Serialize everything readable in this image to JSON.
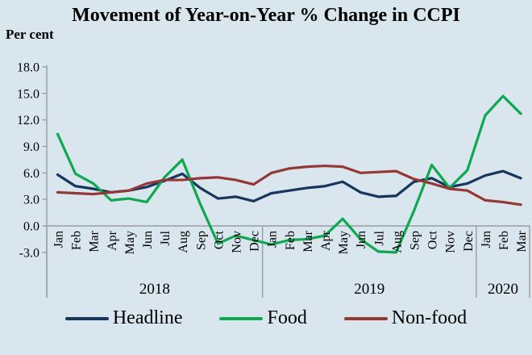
{
  "chart_data": {
    "type": "line",
    "title": "Movement of Year-on-Year % Change in CCPI",
    "ylabel": "Per cent",
    "ylim": [
      -3.0,
      18.0
    ],
    "ytick_step": 3.0,
    "yticks": [
      18.0,
      15.0,
      12.0,
      9.0,
      6.0,
      3.0,
      0.0,
      -3.0
    ],
    "ytick_labels": [
      "18.0",
      "15.0",
      "12.0",
      "9.0",
      "6.0",
      "3.0",
      "0.0",
      "-3.0"
    ],
    "grid": false,
    "legend_position": "bottom",
    "background_color": "#d9e6ee",
    "axis_color": "#9b9b9b",
    "text_color": "#000000",
    "x_month_labels": [
      "Jan",
      "Feb",
      "Mar",
      "Apr",
      "May",
      "Jun",
      "Jul",
      "Aug",
      "Sep",
      "Oct",
      "Nov",
      "Dec",
      "Jan",
      "Feb",
      "Mar",
      "Apr",
      "May",
      "Jun",
      "Jul",
      "Aug",
      "Sep",
      "Oct",
      "Nov",
      "Dec",
      "Jan",
      "Feb",
      "Mar"
    ],
    "year_groups": [
      {
        "label": "2018",
        "start_index": 0,
        "end_index": 11
      },
      {
        "label": "2019",
        "start_index": 12,
        "end_index": 23
      },
      {
        "label": "2020",
        "start_index": 24,
        "end_index": 26
      }
    ],
    "series": [
      {
        "name": "Headline",
        "color": "#17365d",
        "values": [
          5.8,
          4.5,
          4.2,
          3.8,
          4.0,
          4.4,
          5.1,
          5.9,
          4.3,
          3.1,
          3.3,
          2.8,
          3.7,
          4.0,
          4.3,
          4.5,
          5.0,
          3.8,
          3.3,
          3.4,
          5.0,
          5.4,
          4.4,
          4.8,
          5.7,
          6.2,
          5.4
        ]
      },
      {
        "name": "Food",
        "color": "#0fa750",
        "values": [
          10.4,
          5.9,
          4.8,
          2.9,
          3.1,
          2.7,
          5.5,
          7.5,
          2.5,
          -2.0,
          -1.1,
          -1.6,
          -2.1,
          -1.6,
          -1.5,
          -1.1,
          0.8,
          -1.5,
          -2.9,
          -3.0,
          1.7,
          6.9,
          4.3,
          6.3,
          12.5,
          14.7,
          12.7
        ]
      },
      {
        "name": "Non-food",
        "color": "#953735",
        "values": [
          3.8,
          3.7,
          3.6,
          3.8,
          4.0,
          4.8,
          5.2,
          5.2,
          5.4,
          5.5,
          5.2,
          4.7,
          6.0,
          6.5,
          6.7,
          6.8,
          6.7,
          6.0,
          6.1,
          6.2,
          5.3,
          4.8,
          4.2,
          4.0,
          2.9,
          2.7,
          2.4
        ]
      }
    ]
  }
}
